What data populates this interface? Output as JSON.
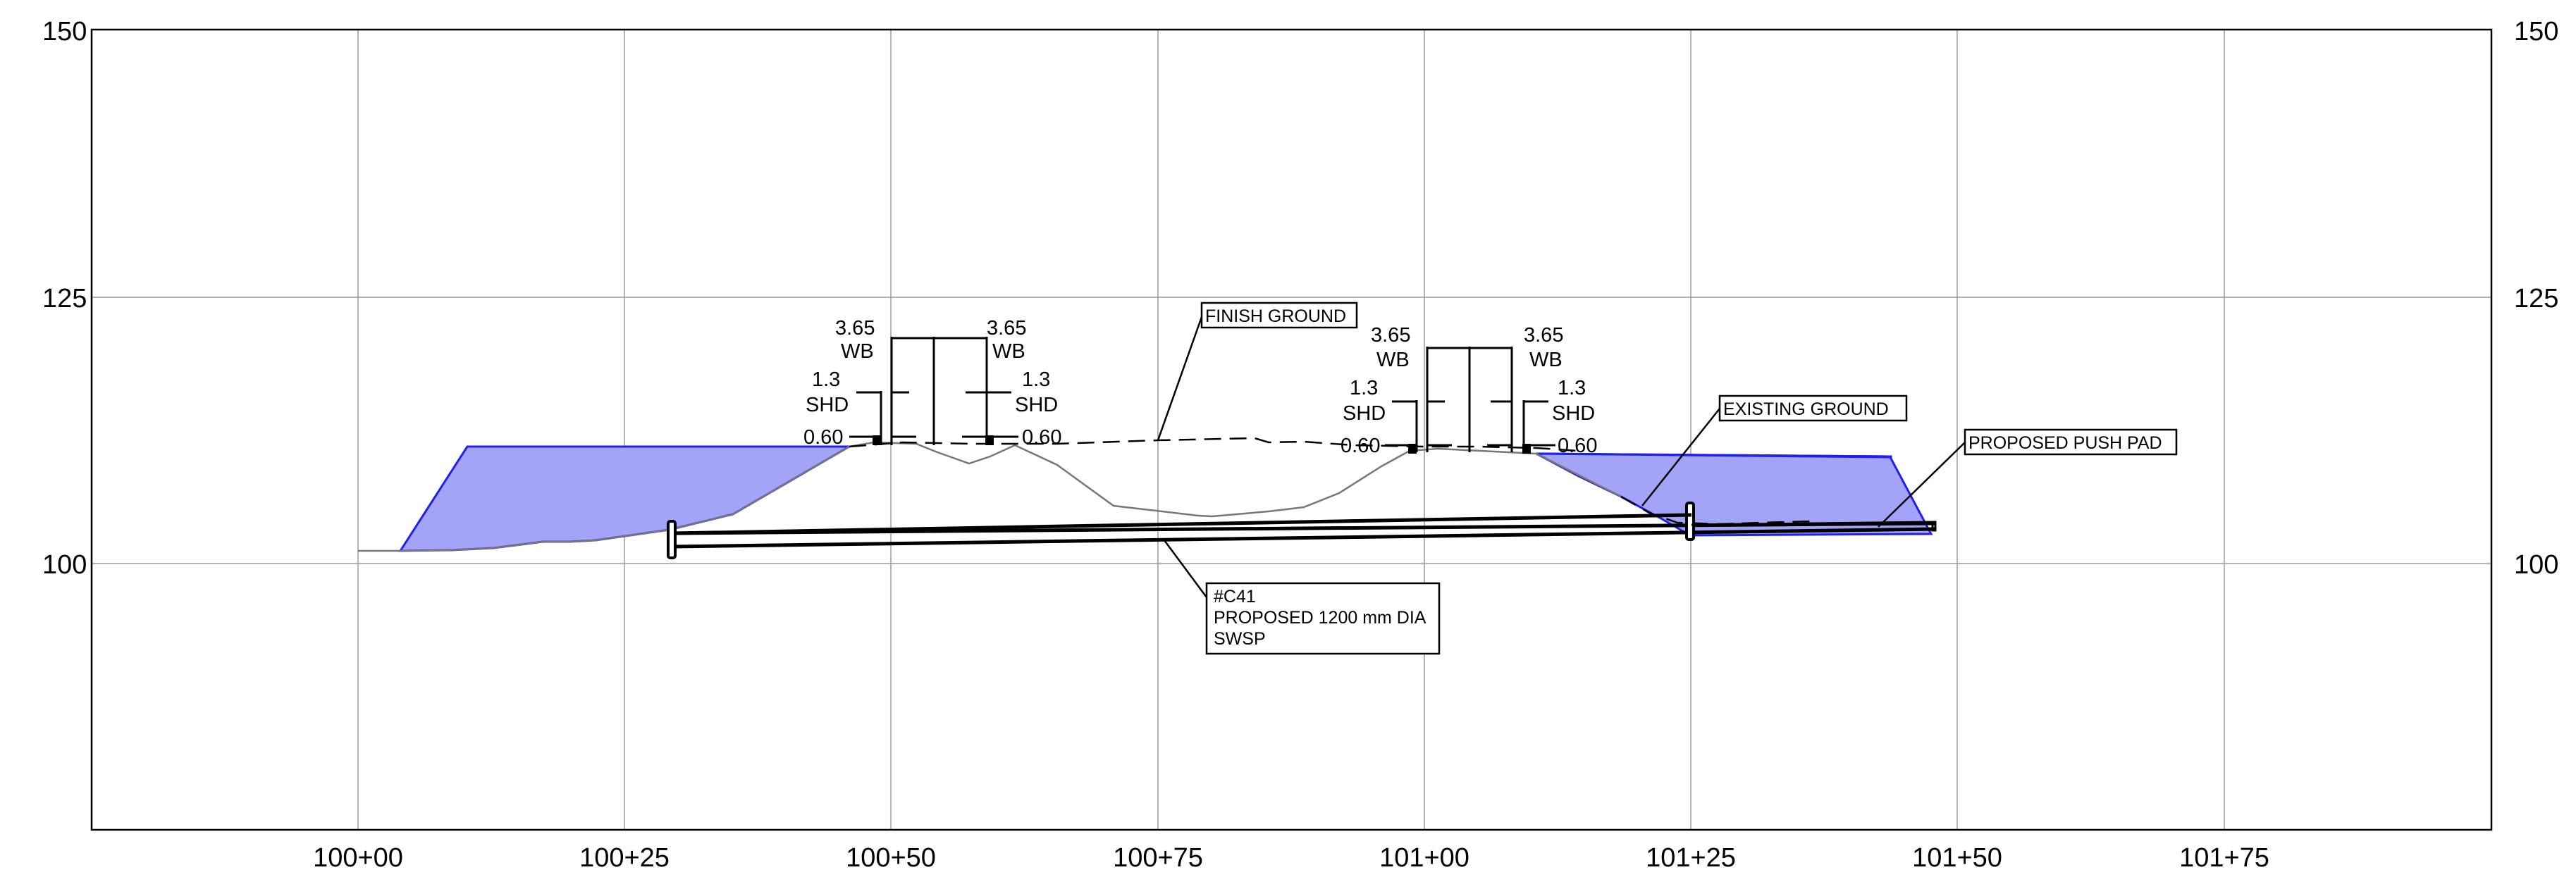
{
  "y_axis": {
    "ticks_left": [
      "150",
      "125",
      "100"
    ],
    "ticks_right": [
      "150",
      "125",
      "100"
    ]
  },
  "x_axis": {
    "ticks": [
      "100+00",
      "100+25",
      "100+50",
      "100+75",
      "101+00",
      "101+25",
      "101+50",
      "101+75"
    ]
  },
  "left_carriageway": {
    "wb_left": [
      "3.65",
      "WB"
    ],
    "wb_right": [
      "3.65",
      "WB"
    ],
    "shd_left": [
      "1.3",
      "SHD"
    ],
    "shd_right": [
      "1.3",
      "SHD"
    ],
    "offset_left": "0.60",
    "offset_right": "0.60"
  },
  "right_carriageway": {
    "wb_left": [
      "3.65",
      "WB"
    ],
    "wb_right": [
      "3.65",
      "WB"
    ],
    "shd_left": [
      "1.3",
      "SHD"
    ],
    "shd_right": [
      "1.3",
      "SHD"
    ],
    "offset_left": "0.60",
    "offset_right": "0.60"
  },
  "callouts": {
    "finish_ground": "FINISH GROUND",
    "existing_ground": "EXISTING GROUND",
    "proposed_push_pad": "PROPOSED PUSH PAD",
    "pipe_id": "#C41",
    "pipe_desc": "PROPOSED 1200 mm DIA",
    "pipe_material": "SWSP"
  },
  "colors": {
    "fill": "#a3a3f7",
    "fill_outline": "#2020ee",
    "grid": "#9a9a9a"
  }
}
